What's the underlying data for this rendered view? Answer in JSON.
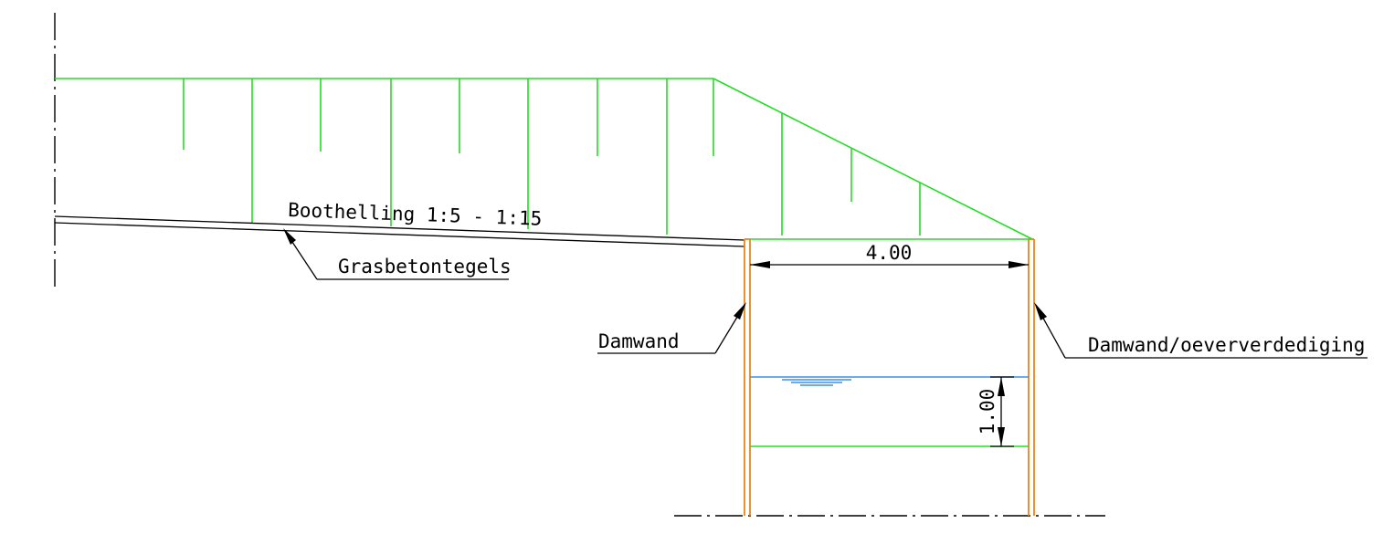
{
  "labels": {
    "slope": "Boothelling 1:5 - 1:15",
    "pavers": "Grasbetontegels",
    "sheet_pile_left": "Damwand",
    "sheet_pile_right": "Damwand/oeververdediging"
  },
  "dimensions": {
    "width": "4.00",
    "depth": "1.00"
  },
  "colors": {
    "fill": "#22dd22",
    "sheet_pile": "#e8861c",
    "water": "#3d8ee8",
    "annotation": "#000000"
  },
  "icons": {
    "water_level": "water-level-symbol-icon",
    "arrow": "leader-arrow-icon"
  }
}
